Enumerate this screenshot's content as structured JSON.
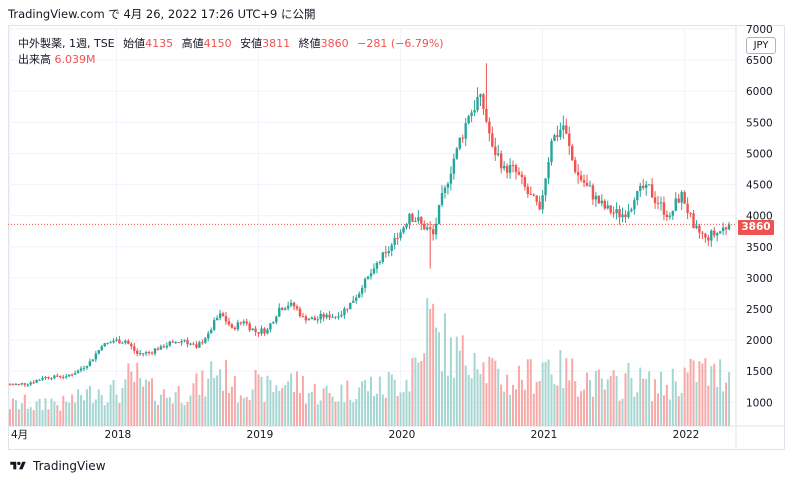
{
  "header": {
    "text": "TradingView.com で 4月 26, 2022 17:26 UTC+9 に公開"
  },
  "legend": {
    "symbol": "中外製薬, 1週, TSE",
    "open_label": "始値",
    "open_value": "4135",
    "high_label": "高値",
    "high_value": "4150",
    "low_label": "安値",
    "low_value": "3811",
    "close_label": "終値",
    "close_value": "3860",
    "change": "−281 (−6.79%)",
    "volume_label": "出来高",
    "volume_value": "6.039M"
  },
  "currency": "JPY",
  "last_price_tag": "3860",
  "footer": {
    "brand": "TradingView"
  },
  "colors": {
    "up": "#26a69a",
    "down": "#ef5350",
    "up_volume": "#a5d6d2",
    "down_volume": "#f7a9a7",
    "grid": "#f0f3fa",
    "last_price_line": "#ef5350"
  },
  "icons": {
    "logo": "tradingview-logo-icon"
  },
  "chart_data": {
    "type": "candlestick",
    "y_axis_ticks": [
      1000,
      1500,
      2000,
      2500,
      3000,
      3500,
      4000,
      4500,
      5000,
      5500,
      6000,
      6500,
      7000
    ],
    "y_axis_range": [
      620,
      7000
    ],
    "x_axis_ticks": [
      "4月",
      "2018",
      "2019",
      "2020",
      "2021",
      "2022"
    ],
    "x_range": [
      "2017-04",
      "2022-05"
    ],
    "grid": true,
    "last_price": 3860,
    "price_series": {
      "x": [
        "2017-04",
        "2017-05",
        "2017-06",
        "2017-07",
        "2017-08",
        "2017-09",
        "2017-10",
        "2017-11",
        "2017-12",
        "2018-01",
        "2018-02",
        "2018-03",
        "2018-04",
        "2018-05",
        "2018-06",
        "2018-07",
        "2018-08",
        "2018-09",
        "2018-10",
        "2018-11",
        "2018-12",
        "2019-01",
        "2019-02",
        "2019-03",
        "2019-04",
        "2019-05",
        "2019-06",
        "2019-07",
        "2019-08",
        "2019-09",
        "2019-10",
        "2019-11",
        "2019-12",
        "2020-01",
        "2020-02",
        "2020-03",
        "2020-04",
        "2020-05",
        "2020-06",
        "2020-07",
        "2020-08",
        "2020-09",
        "2020-10",
        "2020-11",
        "2020-12",
        "2021-01",
        "2021-02",
        "2021-03",
        "2021-04",
        "2021-05",
        "2021-06",
        "2021-07",
        "2021-08",
        "2021-09",
        "2021-10",
        "2021-11",
        "2021-12",
        "2022-01",
        "2022-02",
        "2022-03",
        "2022-04"
      ],
      "close": [
        1290,
        1320,
        1390,
        1430,
        1420,
        1510,
        1660,
        1900,
        1990,
        1990,
        1780,
        1800,
        1900,
        1960,
        2000,
        1880,
        2110,
        2430,
        2200,
        2300,
        2130,
        2170,
        2520,
        2600,
        2380,
        2320,
        2410,
        2380,
        2600,
        2840,
        3150,
        3400,
        3640,
        4030,
        3870,
        3700,
        4450,
        5080,
        5600,
        5950,
        5110,
        4800,
        4700,
        4350,
        4100,
        5200,
        5450,
        4700,
        4480,
        4200,
        4050,
        4020,
        4250,
        4500,
        4200,
        4000,
        4380,
        3800,
        3650,
        3720,
        3860
      ]
    },
    "volume_series": {
      "unit": "millions of shares (approx.)",
      "values": [
        2.4,
        2.6,
        2.3,
        2.8,
        2.5,
        3.0,
        3.6,
        4.2,
        3.9,
        4.0,
        5.4,
        4.3,
        3.9,
        3.5,
        3.8,
        4.4,
        4.6,
        6.3,
        5.6,
        4.1,
        4.9,
        4.2,
        4.5,
        5.0,
        4.8,
        3.9,
        3.7,
        3.5,
        4.0,
        4.4,
        4.6,
        4.2,
        4.9,
        5.3,
        7.2,
        11.8,
        9.6,
        8.1,
        7.8,
        9.0,
        6.5,
        5.4,
        5.0,
        5.6,
        6.0,
        7.3,
        6.2,
        5.9,
        5.5,
        4.8,
        4.4,
        4.7,
        5.4,
        5.0,
        4.6,
        4.5,
        5.2,
        5.8,
        6.3,
        5.6,
        6.0
      ]
    }
  }
}
